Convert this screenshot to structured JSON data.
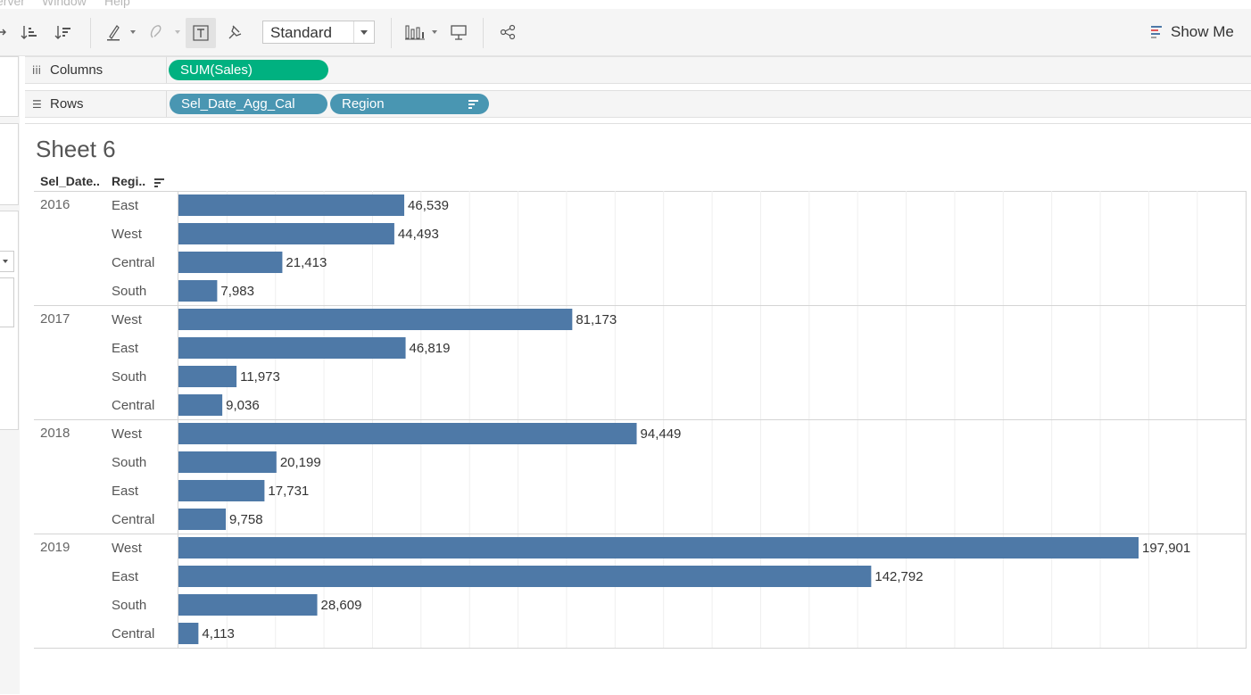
{
  "menubar": {
    "items": [
      "erver",
      "Window",
      "Help"
    ]
  },
  "toolbar": {
    "view_mode": "Standard",
    "show_me_label": "Show Me"
  },
  "shelves": {
    "columns": {
      "label": "Columns",
      "pills": [
        "SUM(Sales)"
      ]
    },
    "rows": {
      "label": "Rows",
      "pills": [
        "Sel_Date_Agg_Cal",
        "Region"
      ]
    }
  },
  "sheet": {
    "title": "Sheet 6",
    "headers": [
      "Sel_Date..",
      "Regi.."
    ]
  },
  "colors": {
    "bar": "#4e79a7",
    "columns_pill": "#00b180",
    "rows_pill": "#4996b2"
  },
  "chart_data": {
    "type": "bar",
    "orientation": "horizontal",
    "measure": "SUM(Sales)",
    "xlim": [
      0,
      220000
    ],
    "grid": true,
    "groups": [
      {
        "year": "2016",
        "rows": [
          {
            "region": "East",
            "value": 46539,
            "label": "46,539"
          },
          {
            "region": "West",
            "value": 44493,
            "label": "44,493"
          },
          {
            "region": "Central",
            "value": 21413,
            "label": "21,413"
          },
          {
            "region": "South",
            "value": 7983,
            "label": "7,983"
          }
        ]
      },
      {
        "year": "2017",
        "rows": [
          {
            "region": "West",
            "value": 81173,
            "label": "81,173"
          },
          {
            "region": "East",
            "value": 46819,
            "label": "46,819"
          },
          {
            "region": "South",
            "value": 11973,
            "label": "11,973"
          },
          {
            "region": "Central",
            "value": 9036,
            "label": "9,036"
          }
        ]
      },
      {
        "year": "2018",
        "rows": [
          {
            "region": "West",
            "value": 94449,
            "label": "94,449"
          },
          {
            "region": "South",
            "value": 20199,
            "label": "20,199"
          },
          {
            "region": "East",
            "value": 17731,
            "label": "17,731"
          },
          {
            "region": "Central",
            "value": 9758,
            "label": "9,758"
          }
        ]
      },
      {
        "year": "2019",
        "rows": [
          {
            "region": "West",
            "value": 197901,
            "label": "197,901"
          },
          {
            "region": "East",
            "value": 142792,
            "label": "142,792"
          },
          {
            "region": "South",
            "value": 28609,
            "label": "28,609"
          },
          {
            "region": "Central",
            "value": 4113,
            "label": "4,113"
          }
        ]
      }
    ]
  }
}
